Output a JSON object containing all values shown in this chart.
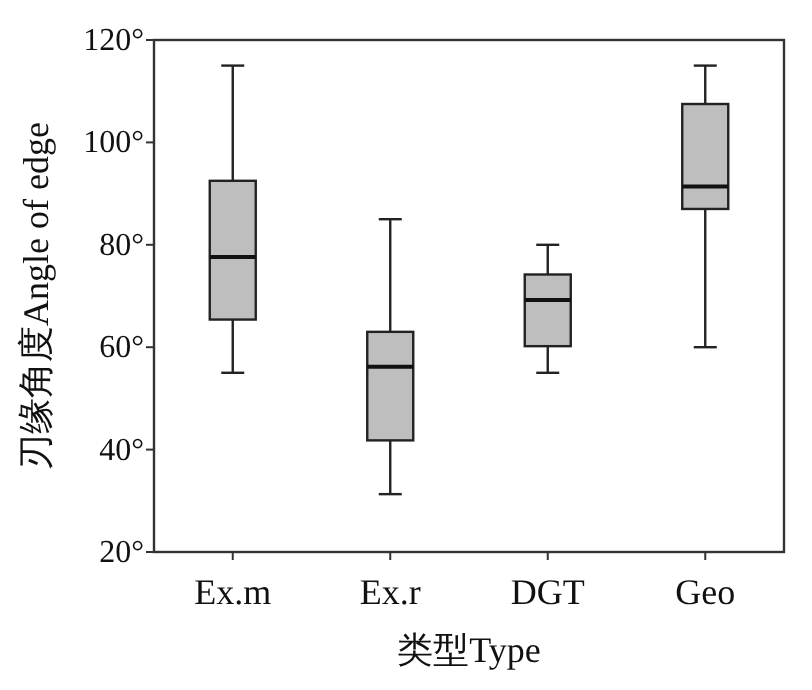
{
  "chart_data": {
    "type": "box",
    "xlabel": "类型Type",
    "ylabel": "刃缘角度Angle of edge",
    "categories": [
      "Ex.m",
      "Ex.r",
      "DGT",
      "Geo"
    ],
    "boxes": [
      {
        "low": 55,
        "q1": 65.4,
        "median": 77.6,
        "q3": 92.5,
        "high": 115
      },
      {
        "low": 31.3,
        "q1": 41.8,
        "median": 56.2,
        "q3": 63,
        "high": 85
      },
      {
        "low": 55,
        "q1": 60.2,
        "median": 69.2,
        "q3": 74.2,
        "high": 80
      },
      {
        "low": 60,
        "q1": 87,
        "median": 91.4,
        "q3": 107.5,
        "high": 115
      }
    ],
    "color": "#bebebe",
    "ylim": [
      20,
      120
    ],
    "yticks": [
      {
        "value": 20,
        "label": "20°"
      },
      {
        "value": 40,
        "label": "40°"
      },
      {
        "value": 60,
        "label": "60°"
      },
      {
        "value": 80,
        "label": "80°"
      },
      {
        "value": 100,
        "label": "100°"
      },
      {
        "value": 120,
        "label": "120°"
      }
    ],
    "grid": false
  }
}
